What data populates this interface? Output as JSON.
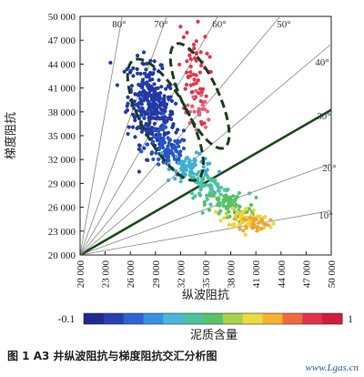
{
  "chart_data": {
    "type": "scatter",
    "title": "",
    "xlabel": "纵波阻抗",
    "ylabel": "梯度阻抗",
    "xlim": [
      20000,
      50000
    ],
    "ylim": [
      20000,
      50000
    ],
    "x_ticks": [
      "20 000",
      "23 000",
      "26 000",
      "29 000",
      "32 000",
      "35 000",
      "38 000",
      "41 000",
      "44 000",
      "47 000",
      "50 000"
    ],
    "y_ticks": [
      "20 000",
      "23 000",
      "26 000",
      "29 000",
      "32 000",
      "35 000",
      "38 000",
      "41 000",
      "44 000",
      "47 000",
      "50 000"
    ],
    "grid": false,
    "ray_origin": [
      20000,
      20000
    ],
    "rays": [
      {
        "angle": 10,
        "label": "10°"
      },
      {
        "angle": 20,
        "label": "20°"
      },
      {
        "angle": 30,
        "label": "30°",
        "highlight": true
      },
      {
        "angle": 40,
        "label": "40°"
      },
      {
        "angle": 50,
        "label": "50°"
      },
      {
        "angle": 60,
        "label": "60°"
      },
      {
        "angle": 70,
        "label": "70°"
      },
      {
        "angle": 80,
        "label": "80°"
      }
    ],
    "colorbar": {
      "label": "泥质含量",
      "min_label": "-0.1",
      "max_label": "1",
      "colors": [
        "#1f2a8c",
        "#2740b0",
        "#2f63cf",
        "#3b8fe0",
        "#49b8d8",
        "#4cc3a0",
        "#58c467",
        "#a9d24c",
        "#eadb3e",
        "#f7b233",
        "#ef6a3d",
        "#e0344b",
        "#d11c3c"
      ]
    },
    "clusters": [
      {
        "name": "",
        "color": "#233aa5",
        "center": [
          28500,
          38500
        ],
        "spread": [
          1400,
          2600
        ],
        "count": 330,
        "slope": -0.55
      },
      {
        "name": "",
        "color": "#2a55c4",
        "center": [
          30500,
          33000
        ],
        "spread": [
          1200,
          1400
        ],
        "count": 90,
        "slope": -0.4
      },
      {
        "name": "",
        "color": "#3fb0d2",
        "center": [
          33500,
          30800
        ],
        "spread": [
          1300,
          900
        ],
        "count": 80,
        "slope": -0.3
      },
      {
        "name": "",
        "color": "#4cc3a0",
        "center": [
          35500,
          28300
        ],
        "spread": [
          1500,
          800
        ],
        "count": 70,
        "slope": -0.25
      },
      {
        "name": "",
        "color": "#59c25f",
        "center": [
          38000,
          26000
        ],
        "spread": [
          1500,
          900
        ],
        "count": 70,
        "slope": -0.2
      },
      {
        "name": "",
        "color": "#e9d63b",
        "center": [
          40000,
          24500
        ],
        "spread": [
          1300,
          700
        ],
        "count": 70,
        "slope": -0.2
      },
      {
        "name": "",
        "color": "#f2a235",
        "center": [
          40800,
          24000
        ],
        "spread": [
          900,
          500
        ],
        "count": 30,
        "slope": 0
      },
      {
        "name": "",
        "color": "#e3344b",
        "center": [
          33500,
          42500
        ],
        "spread": [
          900,
          3000
        ],
        "count": 60,
        "slope": -0.3
      },
      {
        "name": "",
        "color": "#e85f7d",
        "center": [
          34000,
          38000
        ],
        "spread": [
          700,
          1500
        ],
        "count": 20,
        "slope": 0
      }
    ],
    "ellipses": [
      {
        "cx": 30200,
        "cy": 37000,
        "rx": 2800,
        "ry": 8500,
        "rot": 28
      },
      {
        "cx": 34300,
        "cy": 40000,
        "rx": 2200,
        "ry": 7200,
        "rot": 25
      }
    ]
  },
  "caption": "图 1   A3 井纵波阻抗与梯度阻抗交汇分析图",
  "watermark": "www.Lgas.cn"
}
